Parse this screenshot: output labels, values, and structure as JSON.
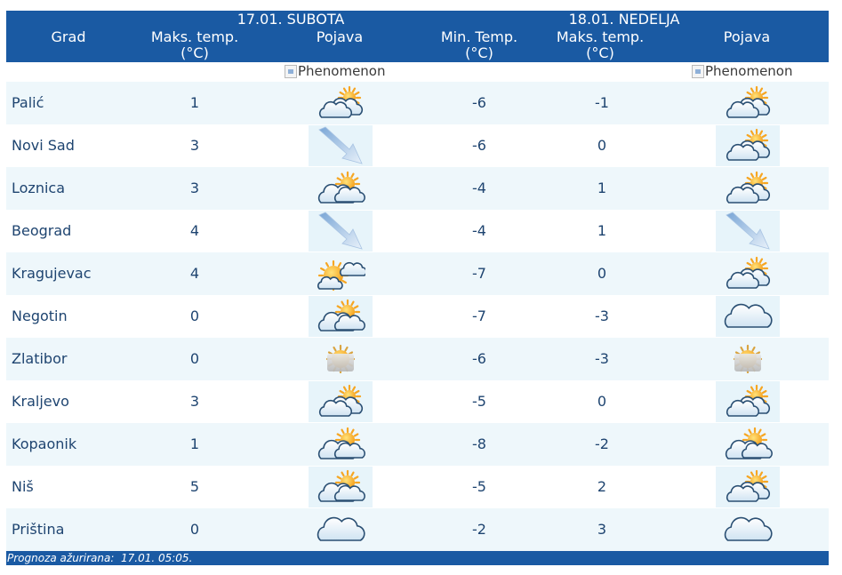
{
  "header": {
    "city_label": "Grad",
    "day1": {
      "date": "17.01. SUBOTA",
      "max_label": "Maks. temp.",
      "unit": "(°C)",
      "phenomenon_label": "Pojava"
    },
    "day2": {
      "date": "18.01. NEDELJA",
      "min_label": "Min. Temp.",
      "max_label": "Maks. temp.",
      "unit": "(°C)",
      "phenomenon_label": "Pojava"
    }
  },
  "phenomenon_alt": "Phenomenon",
  "rows": [
    {
      "city": "Palić",
      "d1_max": "1",
      "d1_icon": "partly-cloudy-icon",
      "d2_min": "-6",
      "d2_max": "-1",
      "d2_icon": "partly-cloudy-icon"
    },
    {
      "city": "Novi Sad",
      "d1_max": "3",
      "d1_icon": "wind-arrow-icon",
      "d2_min": "-6",
      "d2_max": "0",
      "d2_icon": "partly-cloudy-icon"
    },
    {
      "city": "Loznica",
      "d1_max": "3",
      "d1_icon": "sun-behind-clouds-icon",
      "d2_min": "-4",
      "d2_max": "1",
      "d2_icon": "partly-cloudy-icon"
    },
    {
      "city": "Beograd",
      "d1_max": "4",
      "d1_icon": "wind-arrow-icon",
      "d2_min": "-4",
      "d2_max": "1",
      "d2_icon": "wind-arrow-icon"
    },
    {
      "city": "Kragujevac",
      "d1_max": "4",
      "d1_icon": "mostly-sunny-icon",
      "d2_min": "-7",
      "d2_max": "0",
      "d2_icon": "partly-cloudy-icon"
    },
    {
      "city": "Negotin",
      "d1_max": "0",
      "d1_icon": "sun-behind-clouds-icon",
      "d2_min": "-7",
      "d2_max": "-3",
      "d2_icon": "cloud-icon"
    },
    {
      "city": "Zlatibor",
      "d1_max": "0",
      "d1_icon": "fog-icon",
      "d2_min": "-6",
      "d2_max": "-3",
      "d2_icon": "fog-icon"
    },
    {
      "city": "Kraljevo",
      "d1_max": "3",
      "d1_icon": "partly-cloudy-icon",
      "d2_min": "-5",
      "d2_max": "0",
      "d2_icon": "partly-cloudy-icon"
    },
    {
      "city": "Kopaonik",
      "d1_max": "1",
      "d1_icon": "sun-behind-clouds-icon",
      "d2_min": "-8",
      "d2_max": "-2",
      "d2_icon": "sun-behind-clouds-icon"
    },
    {
      "city": "Niš",
      "d1_max": "5",
      "d1_icon": "sun-behind-clouds-icon",
      "d2_min": "-5",
      "d2_max": "2",
      "d2_icon": "partly-cloudy-icon"
    },
    {
      "city": "Priština",
      "d1_max": "0",
      "d1_icon": "cloud-icon",
      "d2_min": "-2",
      "d2_max": "3",
      "d2_icon": "cloud-icon"
    }
  ],
  "footer": {
    "updated_label": "Prognoza ažurirana:",
    "updated_value": "17.01. 05:05."
  },
  "colors": {
    "header_bg": "#1a5aa3",
    "row_alt_bg": "#eef7fb",
    "text": "#1e4470"
  }
}
